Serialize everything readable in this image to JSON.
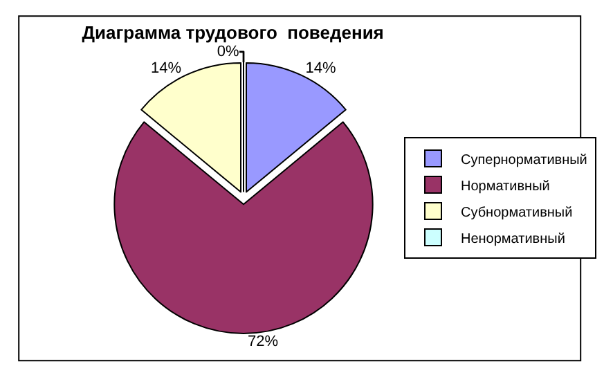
{
  "chart_data": {
    "type": "pie",
    "title": "Диаграмма трудового  поведения",
    "categories": [
      "Супернормативный",
      "Нормативный",
      "Субнормативный",
      "Ненормативный"
    ],
    "values": [
      14,
      72,
      14,
      0
    ],
    "colors": [
      "#9999ff",
      "#993366",
      "#ffffcc",
      "#ccffff"
    ],
    "value_labels": [
      "14%",
      "72%",
      "14%",
      "0%"
    ],
    "legend": "right"
  }
}
